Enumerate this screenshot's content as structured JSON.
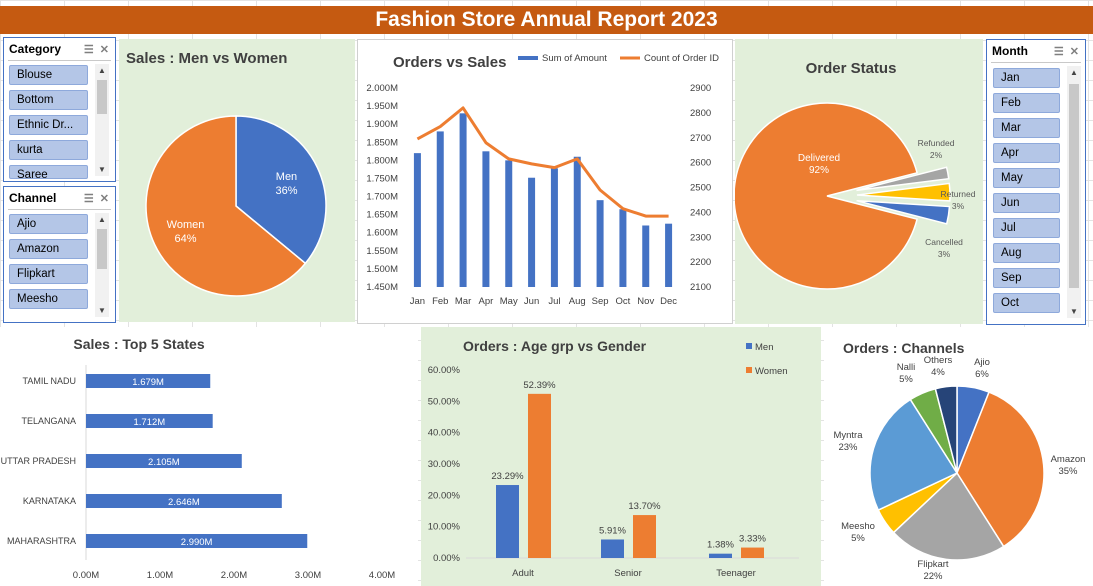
{
  "report": {
    "title": "Fashion Store Annual Report 2023"
  },
  "colors": {
    "blue": "#4472c4",
    "orange": "#ed7d31",
    "gray": "#a5a5a5",
    "yellow": "#ffc000",
    "lightblue": "#5b9bd5",
    "green": "#70ad47",
    "navy": "#264478",
    "title_bg": "#c55a11"
  },
  "slicers": {
    "category": {
      "label": "Category",
      "items": [
        "Blouse",
        "Bottom",
        "Ethnic Dr...",
        "kurta",
        "Saree"
      ]
    },
    "channel": {
      "label": "Channel",
      "items": [
        "Ajio",
        "Amazon",
        "Flipkart",
        "Meesho"
      ]
    },
    "month": {
      "label": "Month",
      "items": [
        "Jan",
        "Feb",
        "Mar",
        "Apr",
        "May",
        "Jun",
        "Jul",
        "Aug",
        "Sep",
        "Oct"
      ]
    }
  },
  "chart_data": [
    {
      "id": "sales_gender",
      "type": "pie",
      "title": "Sales : Men vs Women",
      "labels": [
        "Men",
        "Women"
      ],
      "values": [
        36,
        64
      ],
      "value_labels": [
        "36%",
        "64%"
      ]
    },
    {
      "id": "orders_sales",
      "type": "bar",
      "title": "Orders vs Sales",
      "categories": [
        "Jan",
        "Feb",
        "Mar",
        "Apr",
        "May",
        "Jun",
        "Jul",
        "Aug",
        "Sep",
        "Oct",
        "Nov",
        "Dec"
      ],
      "series": [
        {
          "name": "Sum of Amount",
          "type": "bar",
          "axis": "left",
          "values": [
            1.82,
            1.88,
            1.93,
            1.825,
            1.8,
            1.752,
            1.778,
            1.81,
            1.69,
            1.665,
            1.62,
            1.625
          ]
        },
        {
          "name": "Count of Order ID",
          "type": "line",
          "axis": "right",
          "values": [
            2695,
            2745,
            2820,
            2680,
            2615,
            2595,
            2580,
            2615,
            2490,
            2415,
            2385,
            2385
          ]
        }
      ],
      "y_left": {
        "ticks": [
          "1.450M",
          "1.500M",
          "1.550M",
          "1.600M",
          "1.650M",
          "1.700M",
          "1.750M",
          "1.800M",
          "1.850M",
          "1.900M",
          "1.950M",
          "2.000M"
        ],
        "range": [
          1.45,
          2.0
        ]
      },
      "y_right": {
        "ticks": [
          "2100",
          "2200",
          "2300",
          "2400",
          "2500",
          "2600",
          "2700",
          "2800",
          "2900"
        ],
        "range": [
          2100,
          2900
        ]
      }
    },
    {
      "id": "order_status",
      "type": "pie",
      "title": "Order Status",
      "labels": [
        "Delivered",
        "Refunded",
        "Returned",
        "Cancelled"
      ],
      "values": [
        92,
        2,
        3,
        3
      ],
      "value_labels": [
        "92%",
        "2%",
        "3%",
        "3%"
      ]
    },
    {
      "id": "top_states",
      "type": "bar",
      "orientation": "horizontal",
      "title": "Sales : Top 5 States",
      "categories": [
        "TAMIL NADU",
        "TELANGANA",
        "UTTAR PRADESH",
        "KARNATAKA",
        "MAHARASHTRA"
      ],
      "values": [
        1.679,
        1.712,
        2.105,
        2.646,
        2.99
      ],
      "value_labels": [
        "1.679M",
        "1.712M",
        "2.105M",
        "2.646M",
        "2.990M"
      ],
      "x_ticks": [
        "0.00M",
        "1.00M",
        "2.00M",
        "3.00M",
        "4.00M"
      ],
      "xlim": [
        0,
        4
      ]
    },
    {
      "id": "age_gender",
      "type": "bar",
      "title": "Orders : Age grp vs Gender",
      "categories": [
        "Adult",
        "Senior",
        "Teenager"
      ],
      "series": [
        {
          "name": "Men",
          "values": [
            23.29,
            5.91,
            1.38
          ],
          "value_labels": [
            "23.29%",
            "5.91%",
            "1.38%"
          ]
        },
        {
          "name": "Women",
          "values": [
            52.39,
            13.7,
            3.33
          ],
          "value_labels": [
            "52.39%",
            "13.70%",
            "3.33%"
          ]
        }
      ],
      "y_ticks": [
        "0.00%",
        "10.00%",
        "20.00%",
        "30.00%",
        "40.00%",
        "50.00%",
        "60.00%"
      ],
      "ylim": [
        0,
        60
      ]
    },
    {
      "id": "channels",
      "type": "pie",
      "title": "Orders : Channels",
      "labels": [
        "Ajio",
        "Amazon",
        "Flipkart",
        "Meesho",
        "Myntra",
        "Nalli",
        "Others"
      ],
      "values": [
        6,
        35,
        22,
        5,
        23,
        5,
        4
      ],
      "value_labels": [
        "6%",
        "35%",
        "22%",
        "5%",
        "23%",
        "5%",
        "4%"
      ]
    }
  ]
}
